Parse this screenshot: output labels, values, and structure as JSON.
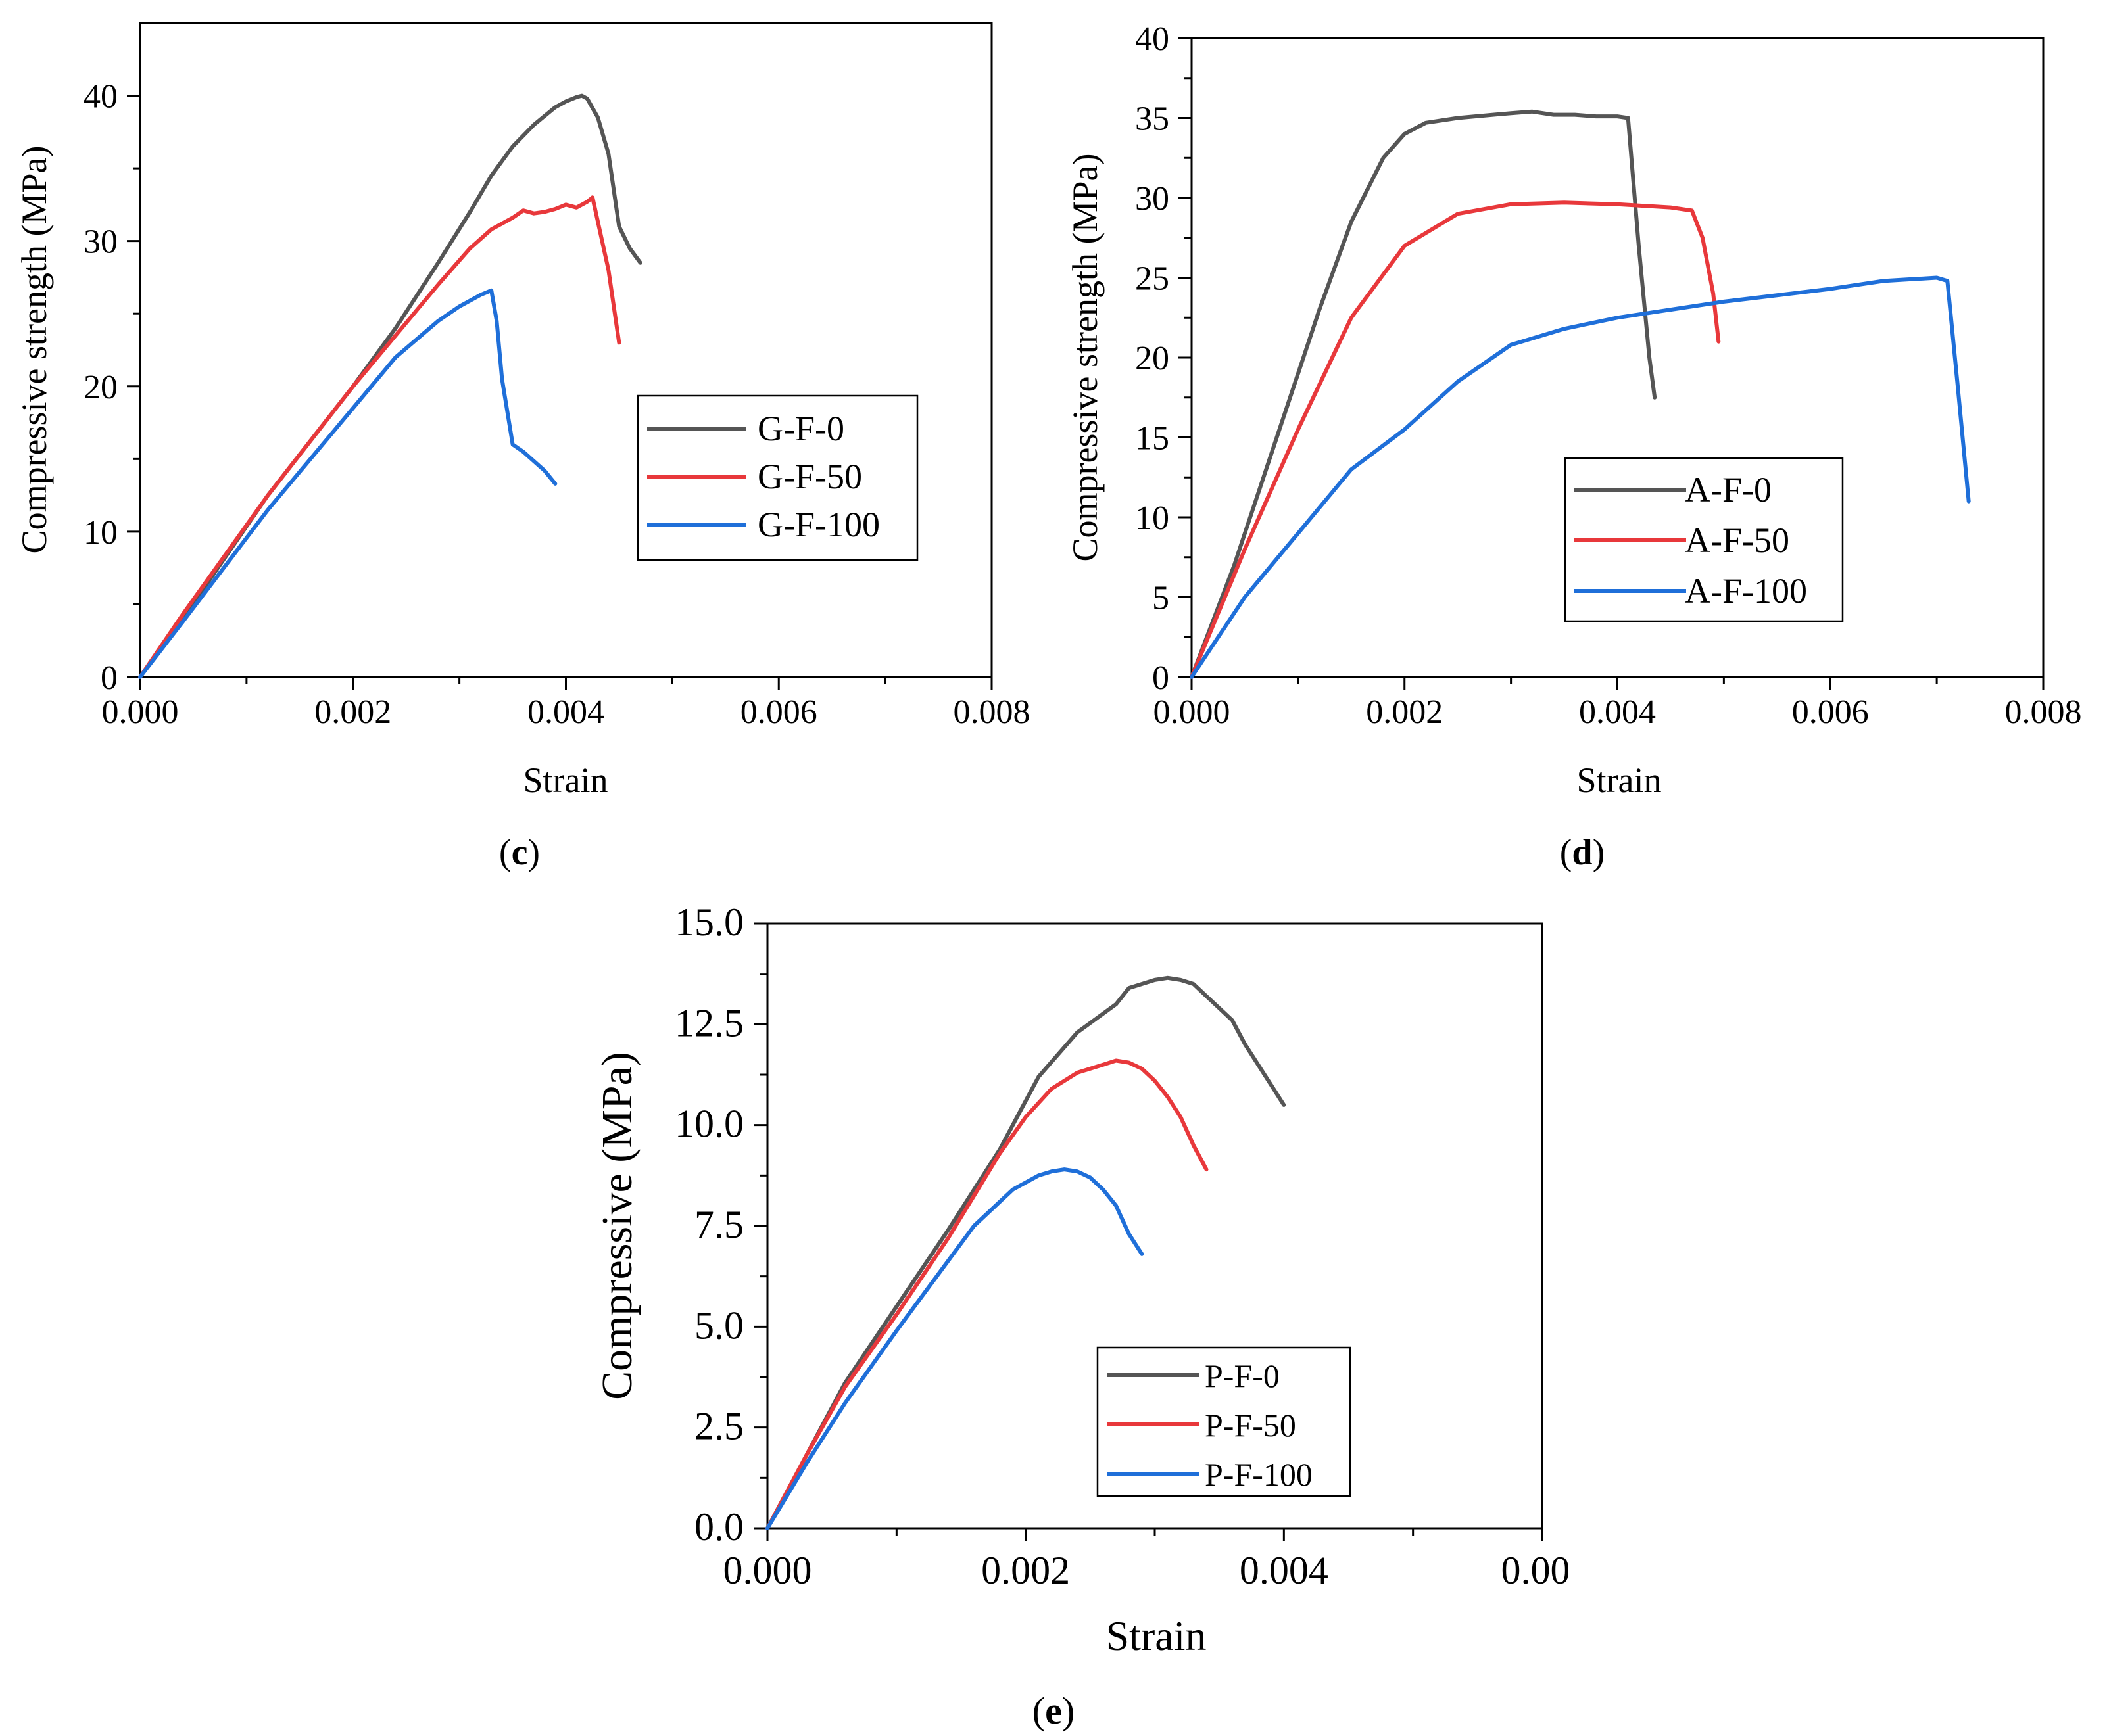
{
  "chart_data": [
    {
      "id": "c",
      "type": "line",
      "panel_label": "c",
      "xlabel": "Strain",
      "ylabel": "Compressive strength (MPa)",
      "xlim": [
        0,
        0.008
      ],
      "ylim": [
        0,
        45
      ],
      "x_ticks": [
        0,
        0.002,
        0.004,
        0.006,
        0.008
      ],
      "x_tick_labels": [
        "0.000",
        "0.002",
        "0.004",
        "0.006",
        "0.008"
      ],
      "y_ticks": [
        0,
        10,
        20,
        30,
        40
      ],
      "y_tick_labels": [
        "0",
        "10",
        "20",
        "30",
        "40"
      ],
      "legend_position": "center-right",
      "series": [
        {
          "name": "G-F-0",
          "color": "#555555",
          "x": [
            0,
            0.0004,
            0.0012,
            0.002,
            0.0024,
            0.0028,
            0.0031,
            0.0033,
            0.0035,
            0.0037,
            0.0039,
            0.004,
            0.0041,
            0.00415,
            0.0042,
            0.0043,
            0.0044,
            0.0045,
            0.0046,
            0.0047
          ],
          "y": [
            0,
            4,
            12.5,
            20,
            24,
            28.5,
            32,
            34.5,
            36.5,
            38,
            39.2,
            39.6,
            39.9,
            40,
            39.8,
            38.5,
            36,
            31,
            29.5,
            28.5
          ]
        },
        {
          "name": "G-F-50",
          "color": "#E8383B",
          "x": [
            0,
            0.0004,
            0.0012,
            0.002,
            0.0024,
            0.0028,
            0.0031,
            0.0033,
            0.0035,
            0.0036,
            0.0037,
            0.0038,
            0.0039,
            0.004,
            0.0041,
            0.0042,
            0.00425,
            0.0044,
            0.0045
          ],
          "y": [
            0,
            4.3,
            12.5,
            20,
            23.5,
            27,
            29.5,
            30.8,
            31.6,
            32.1,
            31.9,
            32,
            32.2,
            32.5,
            32.3,
            32.7,
            33,
            28,
            23
          ]
        },
        {
          "name": "G-F-100",
          "color": "#1F6FD9",
          "x": [
            0,
            0.0004,
            0.0012,
            0.002,
            0.0024,
            0.0028,
            0.003,
            0.0032,
            0.0033,
            0.00335,
            0.0034,
            0.0035,
            0.0036,
            0.0038,
            0.0039
          ],
          "y": [
            0,
            3.8,
            11.5,
            18.5,
            22,
            24.5,
            25.5,
            26.3,
            26.6,
            24.5,
            20.5,
            16,
            15.5,
            14.2,
            13.3
          ]
        }
      ]
    },
    {
      "id": "d",
      "type": "line",
      "panel_label": "d",
      "xlabel": "Strain",
      "ylabel": "Compressive strength (MPa)",
      "xlim": [
        0,
        0.008
      ],
      "ylim": [
        0,
        40
      ],
      "x_ticks": [
        0,
        0.002,
        0.004,
        0.006,
        0.008
      ],
      "x_tick_labels": [
        "0.000",
        "0.002",
        "0.004",
        "0.006",
        "0.008"
      ],
      "y_ticks": [
        0,
        5,
        10,
        15,
        20,
        25,
        30,
        35,
        40
      ],
      "y_tick_labels": [
        "0",
        "5",
        "10",
        "15",
        "20",
        "25",
        "30",
        "35",
        "40"
      ],
      "legend_position": "center-right",
      "series": [
        {
          "name": "A-F-0",
          "color": "#555555",
          "x": [
            0,
            0.0004,
            0.0008,
            0.0012,
            0.0015,
            0.0018,
            0.002,
            0.0022,
            0.0025,
            0.003,
            0.0032,
            0.0034,
            0.0036,
            0.0038,
            0.004,
            0.0041,
            0.0042,
            0.0043,
            0.00435
          ],
          "y": [
            0,
            7,
            15,
            23,
            28.5,
            32.5,
            34,
            34.7,
            35,
            35.3,
            35.4,
            35.2,
            35.2,
            35.1,
            35.1,
            35,
            27,
            20,
            17.5
          ]
        },
        {
          "name": "A-F-50",
          "color": "#E8383B",
          "x": [
            0,
            0.0005,
            0.001,
            0.0015,
            0.002,
            0.0025,
            0.003,
            0.0035,
            0.004,
            0.0045,
            0.0047,
            0.0048,
            0.0049,
            0.00495
          ],
          "y": [
            0,
            8,
            15.5,
            22.5,
            27,
            29,
            29.6,
            29.7,
            29.6,
            29.4,
            29.2,
            27.5,
            24,
            21
          ]
        },
        {
          "name": "A-F-100",
          "color": "#1F6FD9",
          "x": [
            0,
            0.0005,
            0.001,
            0.0015,
            0.002,
            0.0025,
            0.003,
            0.0035,
            0.004,
            0.005,
            0.006,
            0.0065,
            0.007,
            0.0071,
            0.0072,
            0.0073
          ],
          "y": [
            0,
            5,
            9,
            13,
            15.5,
            18.5,
            20.8,
            21.8,
            22.5,
            23.5,
            24.3,
            24.8,
            25,
            24.8,
            18,
            11
          ]
        }
      ]
    },
    {
      "id": "e",
      "type": "line",
      "panel_label": "e",
      "xlabel": "Strain",
      "ylabel": "Compressive (MPa)",
      "xlim": [
        0,
        0.006
      ],
      "ylim": [
        0,
        15
      ],
      "x_ticks": [
        0,
        0.002,
        0.004,
        0.006
      ],
      "x_tick_labels": [
        "0.000",
        "0.002",
        "0.004",
        "0.00("
      ],
      "y_ticks": [
        0,
        2.5,
        5,
        7.5,
        10,
        12.5,
        15
      ],
      "y_tick_labels": [
        "0.0",
        "2.5",
        "5.0",
        "7.5",
        "10.0",
        "12.5",
        "15.0"
      ],
      "legend_position": "lower-right",
      "series": [
        {
          "name": "P-F-0",
          "color": "#555555",
          "x": [
            0,
            0.0003,
            0.0006,
            0.001,
            0.0014,
            0.0018,
            0.0021,
            0.0024,
            0.0027,
            0.0028,
            0.0029,
            0.003,
            0.0031,
            0.0032,
            0.0033,
            0.0034,
            0.0035,
            0.0036,
            0.0037,
            0.0038,
            0.0039,
            0.004
          ],
          "y": [
            0,
            1.8,
            3.6,
            5.5,
            7.4,
            9.4,
            11.2,
            12.3,
            13,
            13.4,
            13.5,
            13.6,
            13.65,
            13.6,
            13.5,
            13.2,
            12.9,
            12.6,
            12,
            11.5,
            11,
            10.5
          ]
        },
        {
          "name": "P-F-50",
          "color": "#E8383B",
          "x": [
            0,
            0.0003,
            0.0006,
            0.001,
            0.0014,
            0.0018,
            0.002,
            0.0022,
            0.0024,
            0.0026,
            0.0027,
            0.0028,
            0.0029,
            0.003,
            0.0031,
            0.0032,
            0.0033,
            0.0034
          ],
          "y": [
            0,
            1.8,
            3.5,
            5.3,
            7.2,
            9.3,
            10.2,
            10.9,
            11.3,
            11.5,
            11.6,
            11.55,
            11.4,
            11.1,
            10.7,
            10.2,
            9.5,
            8.9
          ]
        },
        {
          "name": "P-F-100",
          "color": "#1F6FD9",
          "x": [
            0,
            0.0003,
            0.0006,
            0.001,
            0.0013,
            0.0016,
            0.0019,
            0.0021,
            0.0022,
            0.0023,
            0.0024,
            0.0025,
            0.0026,
            0.0027,
            0.0028,
            0.0029
          ],
          "y": [
            0,
            1.6,
            3.1,
            4.9,
            6.2,
            7.5,
            8.4,
            8.75,
            8.85,
            8.9,
            8.85,
            8.7,
            8.4,
            8,
            7.3,
            6.8
          ]
        }
      ]
    }
  ]
}
